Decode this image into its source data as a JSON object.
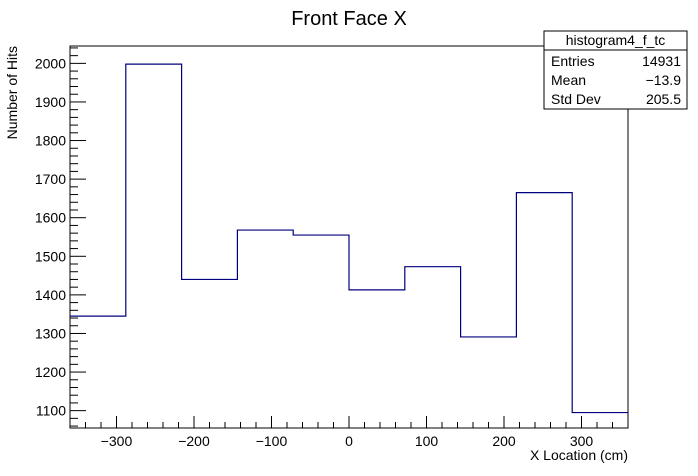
{
  "chart_data": {
    "type": "histogram",
    "title": "Front Face X",
    "xlabel": "X Location (cm)",
    "ylabel": "Number of Hits",
    "xlim": [
      -360,
      360
    ],
    "ylim": [
      1055,
      2045
    ],
    "x_ticks": [
      -300,
      -200,
      -100,
      0,
      100,
      200,
      300
    ],
    "x_tick_labels": [
      "−300",
      "−200",
      "−100",
      "0",
      "100",
      "200",
      "300"
    ],
    "y_ticks": [
      1100,
      1200,
      1300,
      1400,
      1500,
      1600,
      1700,
      1800,
      1900,
      2000
    ],
    "y_tick_labels": [
      "1100",
      "1200",
      "1300",
      "1400",
      "1500",
      "1600",
      "1700",
      "1800",
      "1900",
      "2000"
    ],
    "bin_edges": [
      -360,
      -288,
      -216,
      -144,
      -72,
      0,
      72,
      144,
      216,
      288,
      360
    ],
    "values": [
      1345,
      1998,
      1440,
      1568,
      1555,
      1413,
      1473,
      1291,
      1665,
      1095
    ],
    "line_color": "#00007f",
    "grid": false,
    "stats_box": {
      "name": "histogram4_f_tc",
      "placement": "top-right",
      "rows": [
        {
          "label": "Entries",
          "value": "14931"
        },
        {
          "label": "Mean",
          "value": "−13.9"
        },
        {
          "label": "Std Dev",
          "value": "205.5"
        }
      ]
    }
  }
}
